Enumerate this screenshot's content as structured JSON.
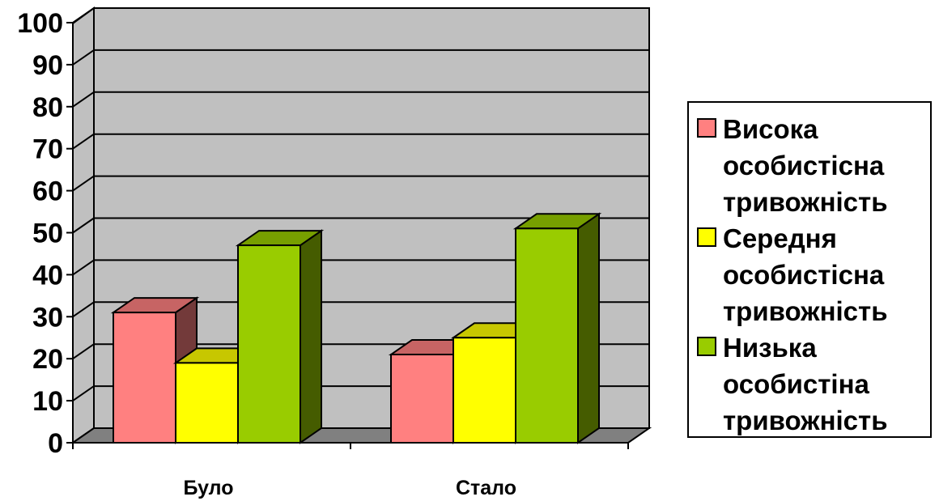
{
  "chart_data": {
    "type": "bar",
    "categories": [
      "Було",
      "Стало"
    ],
    "series": [
      {
        "name": "Висока особистісна тривожність",
        "values": [
          31,
          21
        ],
        "color": "#FF8080"
      },
      {
        "name": "Середня особистісна тривожність",
        "values": [
          19,
          25
        ],
        "color": "#FFFF00"
      },
      {
        "name": "Низька особистістна тривожність",
        "values": [
          47,
          51
        ],
        "color": "#99CC00"
      }
    ],
    "legend_lines": [
      [
        "Висока",
        "особистісна",
        "тривожність"
      ],
      [
        "Середня",
        "особистісна",
        "тривожність"
      ],
      [
        "Низька",
        "особистіна",
        "тривожність"
      ]
    ],
    "y_ticks": [
      0,
      10,
      20,
      30,
      40,
      50,
      60,
      70,
      80,
      90,
      100
    ],
    "ylim": [
      0,
      100
    ],
    "grid": true,
    "three_d": true,
    "legend_position": "right",
    "wall_color": "#C0C0C0",
    "floor_color": "#808080",
    "title": "",
    "xlabel": "",
    "ylabel": ""
  }
}
